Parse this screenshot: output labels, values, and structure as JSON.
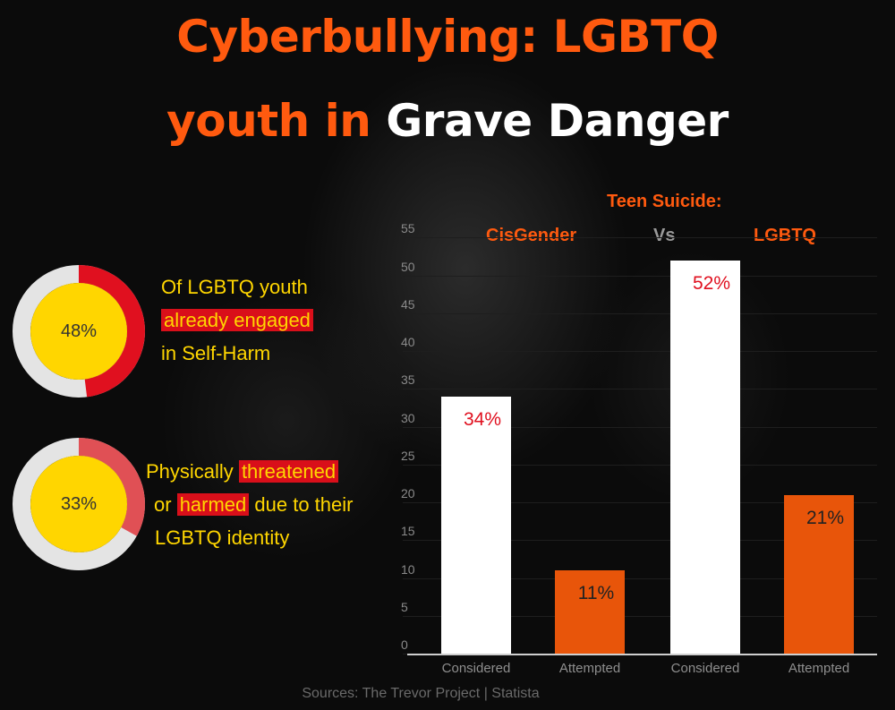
{
  "title": {
    "line1": "Cyberbullying: LGBTQ",
    "line2_orange": "youth in",
    "line2_white": "Grave Danger"
  },
  "stats": [
    {
      "value_label": "48%",
      "value": 48,
      "ring_color": "#e0101f",
      "line1": "Of LGBTQ youth",
      "line2_highlight": "already engaged",
      "line3": "in Self-Harm"
    },
    {
      "value_label": "33%",
      "value": 33,
      "ring_color": "#e05055",
      "line1_pre": "Physically",
      "line1_highlight": "threatened",
      "line2_pre": "or",
      "line2_highlight": "harmed",
      "line2_post": "due to their",
      "line3": "LGBTQ identity"
    }
  ],
  "colors": {
    "title_orange": "#ff5a0f",
    "highlight_red": "#d90f1a",
    "stat_yellow": "#ffd600",
    "donut_track": "#e4e4e4",
    "bar_white": "#ffffff",
    "bar_orange": "#e8550a"
  },
  "chart_data": {
    "type": "bar",
    "title": "Teen Suicide:",
    "group_labels": [
      "CisGender",
      "Vs",
      "LGBTQ"
    ],
    "categories": [
      "Considered",
      "Attempted",
      "Considered",
      "Attempted"
    ],
    "values": [
      34,
      11,
      52,
      21
    ],
    "data_labels": [
      "34%",
      "11%",
      "52%",
      "21%"
    ],
    "yticks": [
      0,
      5,
      10,
      15,
      20,
      25,
      30,
      35,
      40,
      45,
      50,
      55
    ],
    "ylim": [
      0,
      55
    ],
    "grid": true
  },
  "footer": "Sources: The Trevor Project | Statista"
}
